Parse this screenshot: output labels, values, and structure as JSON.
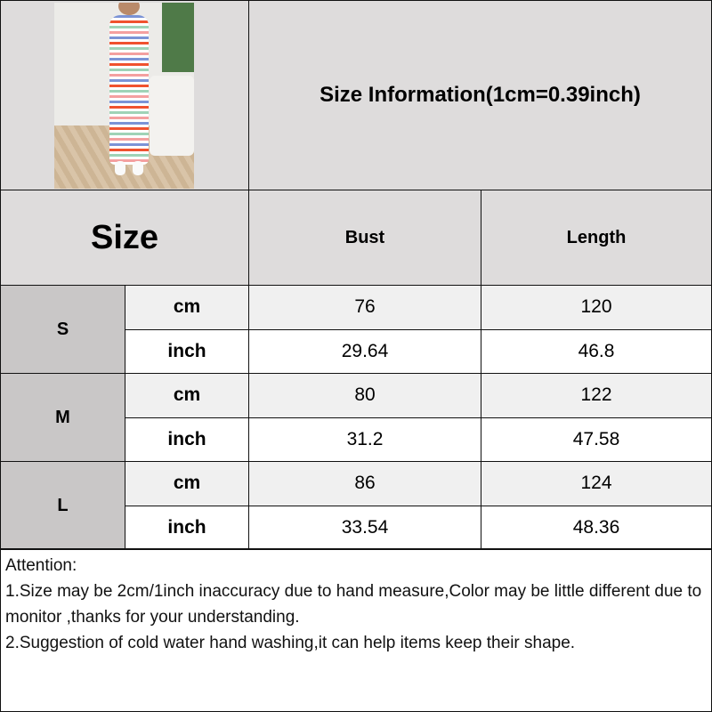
{
  "title": "Size Information(1cm=0.39inch)",
  "size_header": "Size",
  "columns": [
    "Bust",
    "Length"
  ],
  "rows": [
    {
      "size": "S",
      "cm": {
        "unit": "cm",
        "bust": "76",
        "length": "120"
      },
      "inch": {
        "unit": "inch",
        "bust": "29.64",
        "length": "46.8"
      }
    },
    {
      "size": "M",
      "cm": {
        "unit": "cm",
        "bust": "80",
        "length": "122"
      },
      "inch": {
        "unit": "inch",
        "bust": "31.2",
        "length": "47.58"
      }
    },
    {
      "size": "L",
      "cm": {
        "unit": "cm",
        "bust": "86",
        "length": "124"
      },
      "inch": {
        "unit": "inch",
        "bust": "33.54",
        "length": "48.36"
      }
    }
  ],
  "notes": {
    "heading": "Attention:",
    "line1": "1.Size may be 2cm/1inch inaccuracy due to hand measure,Color may be little different due to monitor ,thanks for your understanding.",
    "line2": "2.Suggestion of cold water hand washing,it can help items keep their shape."
  },
  "colors": {
    "header_bg": "#dedcdc",
    "size_bg": "#c9c7c7",
    "cm_row_bg": "#f0f0f0",
    "inch_row_bg": "#ffffff"
  }
}
